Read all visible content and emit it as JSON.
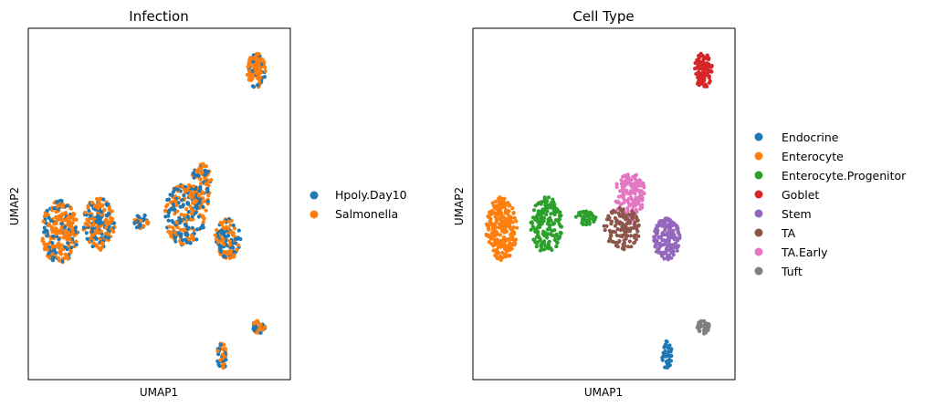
{
  "chart_data": [
    {
      "type": "scatter",
      "title": "Infection",
      "xlabel": "UMAP1",
      "ylabel": "UMAP2",
      "xticks": [],
      "yticks": [],
      "xlim": [
        0,
        100
      ],
      "ylim": [
        0,
        100
      ],
      "grid": false,
      "legend_position": "right",
      "series": [
        {
          "name": "Hpoly.Day10",
          "color": "#1f77b4"
        },
        {
          "name": "Salmonella",
          "color": "#ff7f0e"
        }
      ],
      "clusters": [
        {
          "x": 12,
          "y": 42,
          "rx": 7,
          "ry": 9,
          "n": 260,
          "mix": [
            0.35,
            0.65
          ]
        },
        {
          "x": 27,
          "y": 44,
          "rx": 6,
          "ry": 8,
          "n": 190,
          "mix": [
            0.4,
            0.6
          ]
        },
        {
          "x": 60,
          "y": 47,
          "rx": 8,
          "ry": 9,
          "n": 240,
          "mix": [
            0.45,
            0.55
          ]
        },
        {
          "x": 66,
          "y": 55,
          "rx": 4,
          "ry": 7,
          "n": 90,
          "mix": [
            0.5,
            0.5
          ]
        },
        {
          "x": 76,
          "y": 40,
          "rx": 5,
          "ry": 6,
          "n": 130,
          "mix": [
            0.55,
            0.45
          ]
        },
        {
          "x": 43,
          "y": 45,
          "rx": 3,
          "ry": 2,
          "n": 30,
          "mix": [
            0.6,
            0.4
          ]
        },
        {
          "x": 87,
          "y": 88,
          "rx": 3.5,
          "ry": 5,
          "n": 110,
          "mix": [
            0.25,
            0.75
          ]
        },
        {
          "x": 88,
          "y": 15,
          "rx": 2.5,
          "ry": 2,
          "n": 35,
          "mix": [
            0.5,
            0.5
          ]
        },
        {
          "x": 74,
          "y": 7,
          "rx": 2,
          "ry": 4,
          "n": 40,
          "mix": [
            0.5,
            0.5
          ]
        }
      ]
    },
    {
      "type": "scatter",
      "title": "Cell Type",
      "xlabel": "UMAP1",
      "ylabel": "UMAP2",
      "xticks": [],
      "yticks": [],
      "xlim": [
        0,
        100
      ],
      "ylim": [
        0,
        100
      ],
      "grid": false,
      "legend_position": "right",
      "series": [
        {
          "name": "Endocrine",
          "color": "#1f77b4"
        },
        {
          "name": "Enterocyte",
          "color": "#ff7f0e"
        },
        {
          "name": "Enterocyte.Progenitor",
          "color": "#2ca02c"
        },
        {
          "name": "Goblet",
          "color": "#d62728"
        },
        {
          "name": "Stem",
          "color": "#9467bd"
        },
        {
          "name": "TA",
          "color": "#8c564b"
        },
        {
          "name": "TA.Early",
          "color": "#e377c2"
        },
        {
          "name": "Tuft",
          "color": "#7f7f7f"
        }
      ],
      "clusters": [
        {
          "x": 11,
          "y": 43,
          "rx": 6,
          "ry": 9,
          "n": 240,
          "series": "Enterocyte"
        },
        {
          "x": 28,
          "y": 44,
          "rx": 6,
          "ry": 8,
          "n": 170,
          "series": "Enterocyte.Progenitor"
        },
        {
          "x": 43,
          "y": 46,
          "rx": 4,
          "ry": 2,
          "n": 40,
          "series": "Enterocyte.Progenitor"
        },
        {
          "x": 60,
          "y": 52,
          "rx": 6,
          "ry": 7,
          "n": 160,
          "series": "TA.Early"
        },
        {
          "x": 57,
          "y": 43,
          "rx": 7,
          "ry": 6,
          "n": 120,
          "series": "TA"
        },
        {
          "x": 74,
          "y": 40,
          "rx": 5,
          "ry": 6,
          "n": 160,
          "series": "Stem"
        },
        {
          "x": 88,
          "y": 88,
          "rx": 3.5,
          "ry": 5,
          "n": 110,
          "series": "Goblet"
        },
        {
          "x": 88,
          "y": 15,
          "rx": 2.5,
          "ry": 2,
          "n": 35,
          "series": "Tuft"
        },
        {
          "x": 74,
          "y": 7,
          "rx": 2,
          "ry": 4,
          "n": 40,
          "series": "Endocrine"
        }
      ]
    }
  ]
}
